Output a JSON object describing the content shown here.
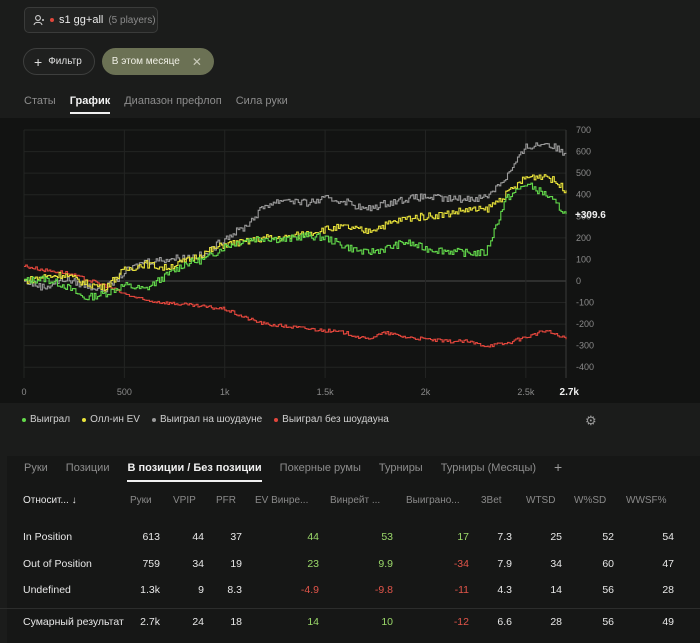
{
  "header": {
    "session_name": "s1 gg+all",
    "players": "(5 players)"
  },
  "filters": {
    "filter_label": "Фильтр",
    "period_label": "В этом месяце",
    "period_clear": "✕"
  },
  "top_tabs": [
    {
      "label": "Статы",
      "active": false
    },
    {
      "label": "График",
      "active": true
    },
    {
      "label": "Диапазон префлоп",
      "active": false
    },
    {
      "label": "Сила руки",
      "active": false
    }
  ],
  "colors": {
    "won": "#63d94b",
    "allin_ev": "#e8e23a",
    "showdown": "#9a9a9a",
    "non_showdown": "#e2463c",
    "accent_period": "#6b7154"
  },
  "chart_data": {
    "type": "line",
    "x_ticks": [
      "0",
      "500",
      "1k",
      "1.5k",
      "2k",
      "2.5k"
    ],
    "x_end_label": "2.7k",
    "xlim": [
      0,
      2700
    ],
    "y_ticks": [
      700,
      600,
      500,
      400,
      300,
      200,
      100,
      0,
      -100,
      -200,
      -300,
      -400
    ],
    "ylim": [
      -450,
      700
    ],
    "current_value_label": "+309.6",
    "series": [
      {
        "name": "Выиграл",
        "color": "#63d94b",
        "x": [
          0,
          100,
          200,
          300,
          400,
          500,
          600,
          700,
          800,
          900,
          1000,
          1100,
          1200,
          1300,
          1400,
          1500,
          1600,
          1700,
          1800,
          1900,
          2000,
          2100,
          2200,
          2300,
          2400,
          2500,
          2600,
          2700
        ],
        "y": [
          0,
          10,
          -20,
          -80,
          -60,
          -20,
          -40,
          20,
          80,
          100,
          160,
          190,
          200,
          190,
          210,
          200,
          160,
          130,
          150,
          180,
          150,
          140,
          130,
          130,
          380,
          450,
          400,
          310
        ]
      },
      {
        "name": "Олл-ин EV",
        "color": "#e8e23a",
        "x": [
          0,
          100,
          200,
          300,
          400,
          500,
          600,
          700,
          800,
          900,
          1000,
          1100,
          1200,
          1300,
          1400,
          1500,
          1600,
          1700,
          1800,
          1900,
          2000,
          2100,
          2200,
          2300,
          2400,
          2500,
          2600,
          2700
        ],
        "y": [
          0,
          20,
          30,
          -10,
          -30,
          50,
          80,
          60,
          90,
          130,
          170,
          180,
          200,
          200,
          220,
          240,
          250,
          230,
          260,
          290,
          300,
          310,
          330,
          330,
          400,
          480,
          490,
          420
        ]
      },
      {
        "name": "Выиграл на шоудауне",
        "color": "#9a9a9a",
        "x": [
          0,
          100,
          200,
          300,
          400,
          500,
          600,
          700,
          800,
          900,
          1000,
          1100,
          1200,
          1300,
          1400,
          1500,
          1600,
          1700,
          1800,
          1900,
          2000,
          2100,
          2200,
          2300,
          2400,
          2500,
          2600,
          2700
        ],
        "y": [
          0,
          -30,
          10,
          -20,
          -40,
          40,
          90,
          100,
          110,
          120,
          200,
          250,
          350,
          380,
          360,
          380,
          370,
          330,
          360,
          380,
          390,
          380,
          380,
          390,
          480,
          620,
          640,
          590
        ]
      },
      {
        "name": "Выиграл без шоудауна",
        "color": "#e2463c",
        "x": [
          0,
          100,
          200,
          300,
          400,
          500,
          600,
          700,
          800,
          900,
          1000,
          1100,
          1200,
          1300,
          1400,
          1500,
          1600,
          1700,
          1800,
          1900,
          2000,
          2100,
          2200,
          2300,
          2400,
          2500,
          2600,
          2700
        ],
        "y": [
          70,
          50,
          40,
          10,
          -20,
          -60,
          -90,
          -100,
          -110,
          -120,
          -130,
          -170,
          -200,
          -210,
          -220,
          -230,
          -240,
          -270,
          -240,
          -260,
          -270,
          -280,
          -280,
          -300,
          -290,
          -260,
          -230,
          -270
        ]
      }
    ],
    "legend_placement": "bottom-left",
    "grid": true
  },
  "gear_label": "⚙",
  "bottom_tabs": [
    {
      "label": "Руки",
      "active": false
    },
    {
      "label": "Позиции",
      "active": false
    },
    {
      "label": "В позиции / Без позиции",
      "active": true
    },
    {
      "label": "Покерные румы",
      "active": false
    },
    {
      "label": "Турниры",
      "active": false
    },
    {
      "label": "Турниры (Месяцы)",
      "active": false
    }
  ],
  "add_tab_label": "+",
  "table": {
    "headers": [
      "Относит...  ↓",
      "Руки",
      "VPIP",
      "PFR",
      "EV Винре...",
      "Винрейт ...",
      "Выиграно...",
      "3Bet",
      "WTSD",
      "W%SD",
      "WWSF%"
    ],
    "rows": [
      {
        "cells": [
          "In Position",
          "613",
          "44",
          "37",
          "44",
          "53",
          "17",
          "7.3",
          "25",
          "52",
          "54"
        ],
        "signs": [
          "",
          "",
          "",
          "",
          "pos",
          "pos",
          "pos",
          "",
          "",
          "",
          ""
        ]
      },
      {
        "cells": [
          "Out of Position",
          "759",
          "34",
          "19",
          "23",
          "9.9",
          "-34",
          "7.9",
          "34",
          "60",
          "47"
        ],
        "signs": [
          "",
          "",
          "",
          "",
          "pos",
          "pos",
          "neg",
          "",
          "",
          "",
          ""
        ]
      },
      {
        "cells": [
          "Undefined",
          "1.3k",
          "9",
          "8.3",
          "-4.9",
          "-9.8",
          "-11",
          "4.3",
          "14",
          "56",
          "28"
        ],
        "signs": [
          "",
          "",
          "",
          "",
          "neg",
          "neg",
          "neg",
          "",
          "",
          "",
          ""
        ]
      },
      {
        "cells": [
          "Сумарный результат",
          "2.7k",
          "24",
          "18",
          "14",
          "10",
          "-12",
          "6.6",
          "28",
          "56",
          "49"
        ],
        "signs": [
          "",
          "",
          "",
          "",
          "pos",
          "pos",
          "neg",
          "",
          "",
          "",
          ""
        ]
      }
    ]
  }
}
